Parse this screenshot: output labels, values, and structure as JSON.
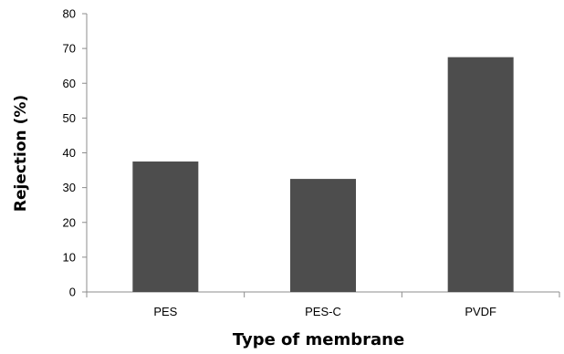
{
  "chart_data": {
    "type": "bar",
    "categories": [
      "PES",
      "PES-C",
      "PVDF"
    ],
    "values": [
      37.5,
      32.5,
      67.5
    ],
    "xlabel": "Type of membrane",
    "ylabel": "Rejection (%)",
    "ylim": [
      0,
      80
    ],
    "yticks": [
      0,
      10,
      20,
      30,
      40,
      50,
      60,
      70,
      80
    ],
    "grid": false,
    "legend": "none",
    "bar_color": "#4d4d4d",
    "axis_color": "#8c8c8c"
  }
}
